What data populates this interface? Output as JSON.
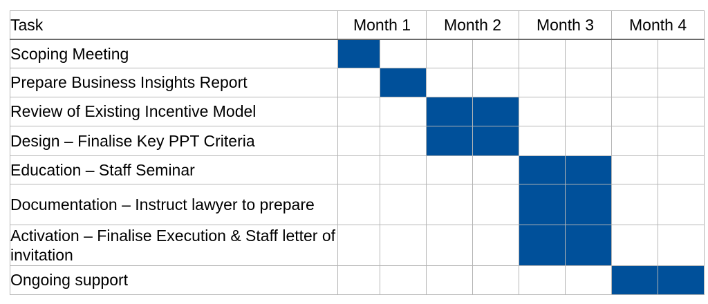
{
  "header": {
    "task_label": "Task",
    "months": [
      "Month 1",
      "Month 2",
      "Month 3",
      "Month 4"
    ]
  },
  "colors": {
    "bar": "#00509a",
    "grid": "#b5b5b5",
    "header_rule": "#6a6a6a"
  },
  "tasks": [
    {
      "label": "Scoping Meeting",
      "active": [
        0
      ]
    },
    {
      "label": "Prepare Business Insights Report",
      "active": [
        1
      ]
    },
    {
      "label": "Review of Existing Incentive Model",
      "active": [
        2,
        3
      ]
    },
    {
      "label": "Design – Finalise Key PPT Criteria",
      "active": [
        2,
        3
      ]
    },
    {
      "label": "Education – Staff Seminar",
      "active": [
        4,
        5
      ]
    },
    {
      "label": "Documentation – Instruct lawyer to prepare",
      "active": [
        4,
        5
      ]
    },
    {
      "label": "Activation – Finalise Execution & Staff letter of invitation",
      "active": [
        4,
        5
      ]
    },
    {
      "label": "Ongoing support",
      "active": [
        6,
        7
      ]
    }
  ]
}
